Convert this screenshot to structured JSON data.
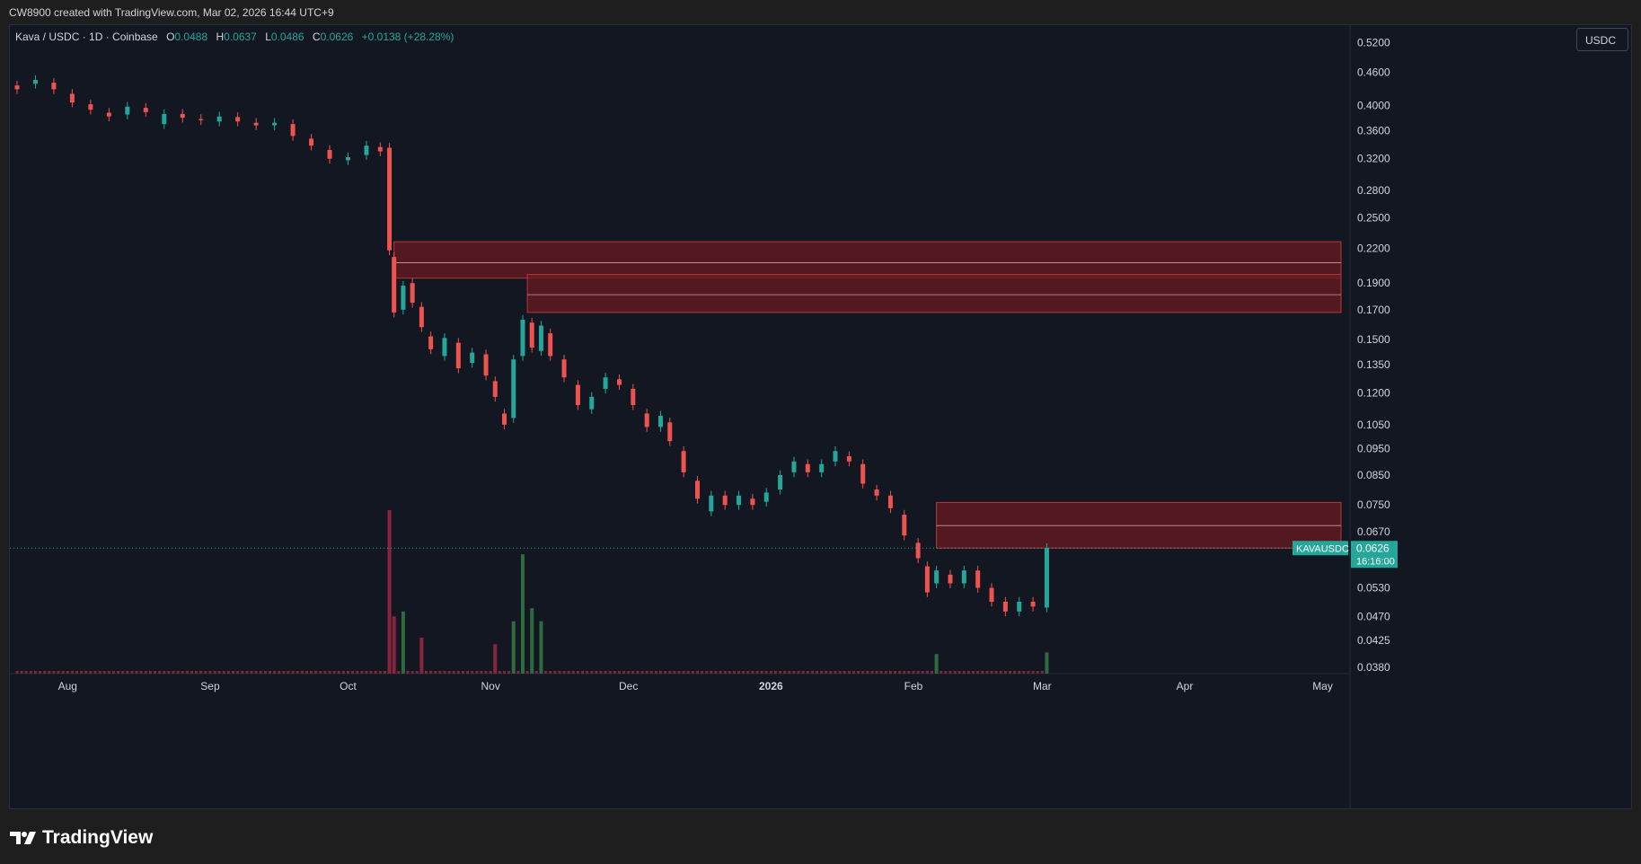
{
  "header": {
    "credit": "CW8900 created with TradingView.com, Mar 02, 2026 16:44 UTC+9"
  },
  "legend": {
    "symbol": "Kava / USDC · 1D · Coinbase",
    "o_label": "O",
    "o": "0.0488",
    "h_label": "H",
    "h": "0.0637",
    "l_label": "L",
    "l": "0.0486",
    "c_label": "C",
    "c": "0.0626",
    "change": "+0.0138 (+28.28%)"
  },
  "price_scale": {
    "currency": "USDC",
    "ticks": [
      "0.5200",
      "0.4600",
      "0.4000",
      "0.3600",
      "0.3200",
      "0.2800",
      "0.2500",
      "0.2200",
      "0.1900",
      "0.1700",
      "0.1500",
      "0.1350",
      "0.1200",
      "0.1050",
      "0.0950",
      "0.0850",
      "0.0750",
      "0.0670",
      "0.0530",
      "0.0470",
      "0.0425",
      "0.0380"
    ],
    "last_label": "KAVAUSDC",
    "last_price": "0.0626",
    "countdown": "16:16:00"
  },
  "time_scale": {
    "ticks": [
      "Aug",
      "Sep",
      "Oct",
      "Nov",
      "Dec",
      "2026",
      "Feb",
      "Mar",
      "Apr",
      "May"
    ]
  },
  "footer": {
    "brand": "TradingView"
  },
  "colors": {
    "up": "#26a69a",
    "down": "#ef5350",
    "zone": "#6b1a20",
    "background": "#131722"
  },
  "chart_data": {
    "type": "candlestick",
    "y_scale": "log",
    "ylim": [
      0.037,
      0.56
    ],
    "x_range": [
      "2025-07-21",
      "2026-05-05"
    ],
    "zones": [
      {
        "from": "2025-10-11",
        "to": "2026-05-05",
        "low": 0.194,
        "high": 0.226,
        "mid": 0.207
      },
      {
        "from": "2025-11-09",
        "to": "2026-05-05",
        "low": 0.168,
        "high": 0.197,
        "mid": 0.181
      },
      {
        "from": "2026-02-06",
        "to": "2026-05-05",
        "low": 0.0626,
        "high": 0.0758,
        "mid": 0.0688
      }
    ],
    "candles": [
      {
        "t": "2025-07-21",
        "o": 0.435,
        "c": 0.428
      },
      {
        "t": "2025-07-25",
        "o": 0.438,
        "c": 0.445
      },
      {
        "t": "2025-07-29",
        "o": 0.44,
        "c": 0.428
      },
      {
        "t": "2025-08-02",
        "o": 0.42,
        "c": 0.405
      },
      {
        "t": "2025-08-06",
        "o": 0.402,
        "c": 0.393
      },
      {
        "t": "2025-08-10",
        "o": 0.388,
        "c": 0.382
      },
      {
        "t": "2025-08-14",
        "o": 0.385,
        "c": 0.398
      },
      {
        "t": "2025-08-18",
        "o": 0.396,
        "c": 0.389
      },
      {
        "t": "2025-08-22",
        "o": 0.37,
        "c": 0.386
      },
      {
        "t": "2025-08-26",
        "o": 0.386,
        "c": 0.38
      },
      {
        "t": "2025-08-30",
        "o": 0.378,
        "c": 0.376
      },
      {
        "t": "2025-09-03",
        "o": 0.374,
        "c": 0.382
      },
      {
        "t": "2025-09-07",
        "o": 0.381,
        "c": 0.374
      },
      {
        "t": "2025-09-11",
        "o": 0.372,
        "c": 0.368
      },
      {
        "t": "2025-09-15",
        "o": 0.368,
        "c": 0.372
      },
      {
        "t": "2025-09-19",
        "o": 0.37,
        "c": 0.352
      },
      {
        "t": "2025-09-23",
        "o": 0.348,
        "c": 0.338
      },
      {
        "t": "2025-09-27",
        "o": 0.332,
        "c": 0.32
      },
      {
        "t": "2025-10-01",
        "o": 0.318,
        "c": 0.322
      },
      {
        "t": "2025-10-05",
        "o": 0.325,
        "c": 0.338
      },
      {
        "t": "2025-10-08",
        "o": 0.336,
        "c": 0.33
      },
      {
        "t": "2025-10-10",
        "o": 0.335,
        "c": 0.218
      },
      {
        "t": "2025-10-11",
        "o": 0.212,
        "c": 0.168
      },
      {
        "t": "2025-10-13",
        "o": 0.17,
        "c": 0.188
      },
      {
        "t": "2025-10-15",
        "o": 0.19,
        "c": 0.175
      },
      {
        "t": "2025-10-17",
        "o": 0.172,
        "c": 0.158
      },
      {
        "t": "2025-10-19",
        "o": 0.152,
        "c": 0.144
      },
      {
        "t": "2025-10-22",
        "o": 0.14,
        "c": 0.151
      },
      {
        "t": "2025-10-25",
        "o": 0.148,
        "c": 0.133
      },
      {
        "t": "2025-10-28",
        "o": 0.136,
        "c": 0.142
      },
      {
        "t": "2025-10-31",
        "o": 0.141,
        "c": 0.129
      },
      {
        "t": "2025-11-02",
        "o": 0.126,
        "c": 0.118
      },
      {
        "t": "2025-11-04",
        "o": 0.11,
        "c": 0.105
      },
      {
        "t": "2025-11-06",
        "o": 0.108,
        "c": 0.138
      },
      {
        "t": "2025-11-08",
        "o": 0.14,
        "c": 0.163
      },
      {
        "t": "2025-11-10",
        "o": 0.161,
        "c": 0.145
      },
      {
        "t": "2025-11-12",
        "o": 0.143,
        "c": 0.159
      },
      {
        "t": "2025-11-14",
        "o": 0.154,
        "c": 0.14
      },
      {
        "t": "2025-11-17",
        "o": 0.138,
        "c": 0.128
      },
      {
        "t": "2025-11-20",
        "o": 0.124,
        "c": 0.114
      },
      {
        "t": "2025-11-23",
        "o": 0.112,
        "c": 0.118
      },
      {
        "t": "2025-11-26",
        "o": 0.122,
        "c": 0.128
      },
      {
        "t": "2025-11-29",
        "o": 0.127,
        "c": 0.124
      },
      {
        "t": "2025-12-02",
        "o": 0.122,
        "c": 0.114
      },
      {
        "t": "2025-12-05",
        "o": 0.11,
        "c": 0.104
      },
      {
        "t": "2025-12-08",
        "o": 0.104,
        "c": 0.109
      },
      {
        "t": "2025-12-10",
        "o": 0.106,
        "c": 0.098
      },
      {
        "t": "2025-12-13",
        "o": 0.094,
        "c": 0.086
      },
      {
        "t": "2025-12-16",
        "o": 0.083,
        "c": 0.077
      },
      {
        "t": "2025-12-19",
        "o": 0.073,
        "c": 0.078
      },
      {
        "t": "2025-12-22",
        "o": 0.078,
        "c": 0.075
      },
      {
        "t": "2025-12-25",
        "o": 0.075,
        "c": 0.078
      },
      {
        "t": "2025-12-28",
        "o": 0.077,
        "c": 0.075
      },
      {
        "t": "2025-12-31",
        "o": 0.076,
        "c": 0.079
      },
      {
        "t": "2026-01-03",
        "o": 0.08,
        "c": 0.085
      },
      {
        "t": "2026-01-06",
        "o": 0.086,
        "c": 0.09
      },
      {
        "t": "2026-01-09",
        "o": 0.089,
        "c": 0.086
      },
      {
        "t": "2026-01-12",
        "o": 0.086,
        "c": 0.089
      },
      {
        "t": "2026-01-15",
        "o": 0.09,
        "c": 0.094
      },
      {
        "t": "2026-01-18",
        "o": 0.092,
        "c": 0.09
      },
      {
        "t": "2026-01-21",
        "o": 0.089,
        "c": 0.082
      },
      {
        "t": "2026-01-24",
        "o": 0.08,
        "c": 0.078
      },
      {
        "t": "2026-01-27",
        "o": 0.078,
        "c": 0.074
      },
      {
        "t": "2026-01-30",
        "o": 0.072,
        "c": 0.066
      },
      {
        "t": "2026-02-02",
        "o": 0.064,
        "c": 0.06
      },
      {
        "t": "2026-02-04",
        "o": 0.058,
        "c": 0.052
      },
      {
        "t": "2026-02-06",
        "o": 0.054,
        "c": 0.057
      },
      {
        "t": "2026-02-09",
        "o": 0.056,
        "c": 0.054
      },
      {
        "t": "2026-02-12",
        "o": 0.054,
        "c": 0.057
      },
      {
        "t": "2026-02-15",
        "o": 0.057,
        "c": 0.053
      },
      {
        "t": "2026-02-18",
        "o": 0.053,
        "c": 0.05
      },
      {
        "t": "2026-02-21",
        "o": 0.05,
        "c": 0.048
      },
      {
        "t": "2026-02-24",
        "o": 0.048,
        "c": 0.05
      },
      {
        "t": "2026-02-27",
        "o": 0.05,
        "c": 0.049
      },
      {
        "t": "2026-03-02",
        "o": 0.0488,
        "c": 0.0626
      }
    ],
    "volume_spikes": [
      {
        "t": "2025-10-10",
        "v": 100,
        "dir": "down"
      },
      {
        "t": "2025-10-11",
        "v": 35,
        "dir": "down"
      },
      {
        "t": "2025-10-13",
        "v": 38,
        "dir": "up"
      },
      {
        "t": "2025-10-17",
        "v": 22,
        "dir": "down"
      },
      {
        "t": "2025-11-02",
        "v": 18,
        "dir": "down"
      },
      {
        "t": "2025-11-06",
        "v": 32,
        "dir": "up"
      },
      {
        "t": "2025-11-08",
        "v": 73,
        "dir": "up"
      },
      {
        "t": "2025-11-10",
        "v": 40,
        "dir": "up"
      },
      {
        "t": "2025-11-12",
        "v": 32,
        "dir": "up"
      },
      {
        "t": "2026-02-06",
        "v": 12,
        "dir": "up"
      },
      {
        "t": "2026-03-02",
        "v": 13,
        "dir": "up"
      }
    ]
  }
}
